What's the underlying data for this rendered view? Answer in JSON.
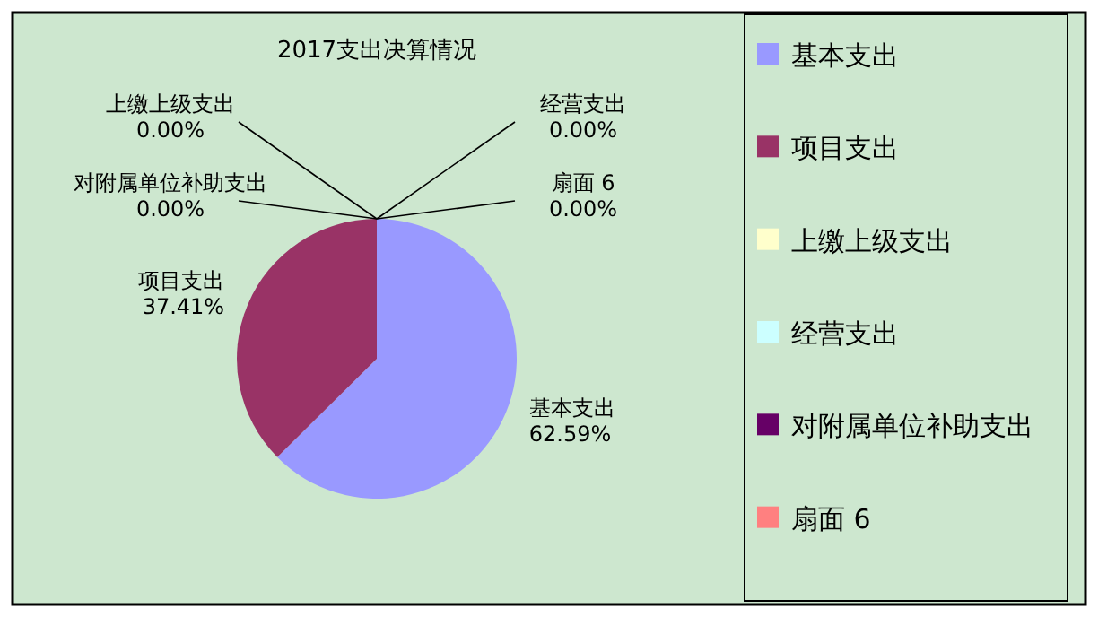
{
  "chart_data": {
    "type": "pie",
    "title": "2017支出决算情况",
    "categories": [
      "基本支出",
      "项目支出",
      "上缴上级支出",
      "经营支出",
      "对附属单位补助支出",
      "扇面 6"
    ],
    "values": [
      62.59,
      37.41,
      0,
      0,
      0,
      0
    ],
    "colors": [
      "#9999ff",
      "#993366",
      "#ffffcc",
      "#ccffff",
      "#660066",
      "#ff8080"
    ],
    "value_labels": [
      "62.59%",
      "37.41%",
      "0.00%",
      "0.00%",
      "0.00%",
      "0.00%"
    ],
    "legend": "right"
  }
}
